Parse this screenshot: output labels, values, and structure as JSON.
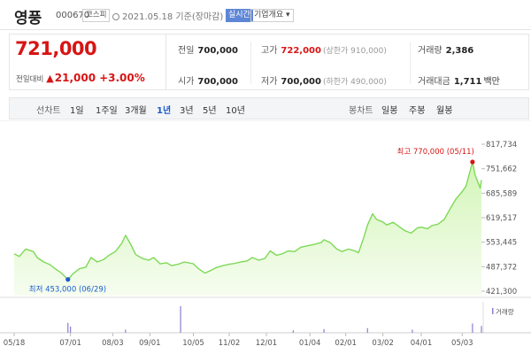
{
  "stock": {
    "name": "영풍",
    "code": "000670",
    "market": "코스피",
    "date_text": "2021.05.18 기준(장마감)",
    "realtime_label": "실시간",
    "profile_label": "기업개요"
  },
  "price": {
    "current": "721,000",
    "change_label": "전일대비",
    "change_arrow": "▲",
    "change_amount": "21,000",
    "change_pct": "+3.00%"
  },
  "stats": {
    "prev_close": {
      "label": "전일",
      "value": "700,000"
    },
    "high": {
      "label": "고가",
      "value": "722,000",
      "sub": "(상한가 910,000)"
    },
    "volume": {
      "label": "거래량",
      "value": "2,386"
    },
    "open": {
      "label": "시가",
      "value": "700,000"
    },
    "low": {
      "label": "저가",
      "value": "700,000",
      "sub": "(하한가 490,000)"
    },
    "turnover": {
      "label": "거래대금",
      "value": "1,711",
      "unit": "백만"
    }
  },
  "period_bar": {
    "line_label": "선차트",
    "periods": [
      "1일",
      "1주일",
      "3개월",
      "1년",
      "3년",
      "5년",
      "10년"
    ],
    "selected": "1년",
    "candle_label": "봉차트",
    "candles": [
      "일봉",
      "주봉",
      "월봉"
    ]
  },
  "chart_data": {
    "type": "area",
    "x_start": "2020-05-18",
    "x_end": "2021-05-18",
    "y_ticks": [
      817734,
      751662,
      685589,
      619517,
      553445,
      487372,
      421300
    ],
    "y_tick_labels": [
      "817,734",
      "751,662",
      "685,589",
      "619,517",
      "553,445",
      "487,372",
      "421,300"
    ],
    "ylim": [
      421300,
      817734
    ],
    "x_tick_labels": [
      "05/18",
      "07/01",
      "08/03",
      "09/01",
      "10/05",
      "11/02",
      "12/01",
      "01/04",
      "02/01",
      "03/02",
      "04/01",
      "05/03"
    ],
    "x_tick_dates": [
      "2020-05-18",
      "2020-07-01",
      "2020-08-03",
      "2020-09-01",
      "2020-10-05",
      "2020-11-02",
      "2020-12-01",
      "2021-01-04",
      "2021-02-01",
      "2021-03-02",
      "2021-04-01",
      "2021-05-03"
    ],
    "series": [
      {
        "values": [
          [
            "2020-05-18",
            522000
          ],
          [
            "2020-05-22",
            515000
          ],
          [
            "2020-05-27",
            535000
          ],
          [
            "2020-06-02",
            528000
          ],
          [
            "2020-06-05",
            512000
          ],
          [
            "2020-06-10",
            500000
          ],
          [
            "2020-06-15",
            493000
          ],
          [
            "2020-06-19",
            482000
          ],
          [
            "2020-06-24",
            470000
          ],
          [
            "2020-06-29",
            453000
          ],
          [
            "2020-07-03",
            468000
          ],
          [
            "2020-07-08",
            482000
          ],
          [
            "2020-07-13",
            486000
          ],
          [
            "2020-07-17",
            512000
          ],
          [
            "2020-07-22",
            500000
          ],
          [
            "2020-07-27",
            507000
          ],
          [
            "2020-07-31",
            518000
          ],
          [
            "2020-08-05",
            528000
          ],
          [
            "2020-08-10",
            550000
          ],
          [
            "2020-08-13",
            572000
          ],
          [
            "2020-08-17",
            548000
          ],
          [
            "2020-08-21",
            520000
          ],
          [
            "2020-08-26",
            510000
          ],
          [
            "2020-08-31",
            505000
          ],
          [
            "2020-09-04",
            512000
          ],
          [
            "2020-09-09",
            495000
          ],
          [
            "2020-09-14",
            498000
          ],
          [
            "2020-09-18",
            490000
          ],
          [
            "2020-09-23",
            494000
          ],
          [
            "2020-09-28",
            500000
          ],
          [
            "2020-10-05",
            495000
          ],
          [
            "2020-10-09",
            482000
          ],
          [
            "2020-10-14",
            470000
          ],
          [
            "2020-10-19",
            478000
          ],
          [
            "2020-10-23",
            485000
          ],
          [
            "2020-10-28",
            490000
          ],
          [
            "2020-11-02",
            494000
          ],
          [
            "2020-11-06",
            496000
          ],
          [
            "2020-11-11",
            500000
          ],
          [
            "2020-11-16",
            503000
          ],
          [
            "2020-11-20",
            512000
          ],
          [
            "2020-11-25",
            505000
          ],
          [
            "2020-11-30",
            510000
          ],
          [
            "2020-12-04",
            530000
          ],
          [
            "2020-12-09",
            518000
          ],
          [
            "2020-12-14",
            523000
          ],
          [
            "2020-12-18",
            530000
          ],
          [
            "2020-12-23",
            528000
          ],
          [
            "2020-12-28",
            540000
          ],
          [
            "2021-01-04",
            545000
          ],
          [
            "2021-01-08",
            548000
          ],
          [
            "2021-01-13",
            553000
          ],
          [
            "2021-01-15",
            560000
          ],
          [
            "2021-01-20",
            552000
          ],
          [
            "2021-01-25",
            535000
          ],
          [
            "2021-01-29",
            528000
          ],
          [
            "2021-02-03",
            535000
          ],
          [
            "2021-02-08",
            530000
          ],
          [
            "2021-02-11",
            525000
          ],
          [
            "2021-02-15",
            565000
          ],
          [
            "2021-02-18",
            600000
          ],
          [
            "2021-02-22",
            630000
          ],
          [
            "2021-02-25",
            615000
          ],
          [
            "2021-03-02",
            608000
          ],
          [
            "2021-03-05",
            600000
          ],
          [
            "2021-03-10",
            607000
          ],
          [
            "2021-03-15",
            595000
          ],
          [
            "2021-03-19",
            585000
          ],
          [
            "2021-03-24",
            578000
          ],
          [
            "2021-03-29",
            592000
          ],
          [
            "2021-04-01",
            594000
          ],
          [
            "2021-04-06",
            590000
          ],
          [
            "2021-04-09",
            598000
          ],
          [
            "2021-04-14",
            602000
          ],
          [
            "2021-04-19",
            615000
          ],
          [
            "2021-04-23",
            640000
          ],
          [
            "2021-04-28",
            670000
          ],
          [
            "2021-05-03",
            690000
          ],
          [
            "2021-05-06",
            705000
          ],
          [
            "2021-05-11",
            770000
          ],
          [
            "2021-05-13",
            735000
          ],
          [
            "2021-05-17",
            700000
          ],
          [
            "2021-05-18",
            721000
          ]
        ]
      }
    ],
    "annotations": {
      "max": {
        "label": "최고",
        "value_text": "770,000",
        "date_text": "(05/11)",
        "x": "2021-05-11",
        "y": 770000
      },
      "min": {
        "label": "최저",
        "value_text": "453,000",
        "date_text": "(06/29)",
        "x": "2020-06-29",
        "y": 453000
      }
    },
    "volume": {
      "label": "거래량",
      "bars": [
        [
          "2020-06-29",
          0.32
        ],
        [
          "2020-07-01",
          0.2
        ],
        [
          "2020-08-13",
          0.1
        ],
        [
          "2020-09-25",
          0.86
        ],
        [
          "2020-12-22",
          0.08
        ],
        [
          "2021-01-15",
          0.12
        ],
        [
          "2021-02-18",
          0.15
        ],
        [
          "2021-03-25",
          0.1
        ],
        [
          "2021-05-11",
          0.3
        ],
        [
          "2021-05-18",
          0.22
        ]
      ]
    },
    "colors": {
      "line": "#7ed957",
      "fill_top": "#d3f5b8",
      "fill_bottom": "#f6fdf0",
      "max": "#d81414",
      "min": "#1a5dcc"
    }
  }
}
